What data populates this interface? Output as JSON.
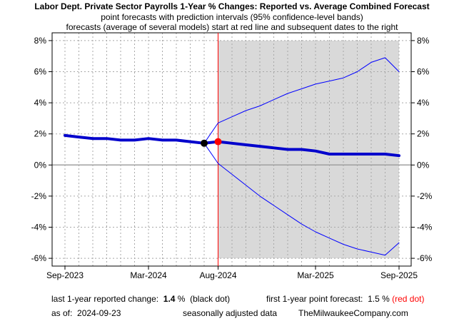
{
  "chart_data": {
    "type": "line",
    "title": "Labor Dept. Private Sector Payrolls 1-Year % Changes: Reported vs. Average Combined Forecast",
    "subtitle_1": "point forecasts with prediction intervals (95% confidence-level bands)",
    "subtitle_2": "forecasts (average of several models) start at red line and subsequent dates to the right",
    "xlabel": "",
    "ylabel": "",
    "ylim": [
      -6.5,
      8.5
    ],
    "y_ticks": [
      8,
      6,
      4,
      2,
      0,
      -2,
      -4,
      -6
    ],
    "y_tick_labels": [
      "8%",
      "6%",
      "4%",
      "2%",
      "0%",
      "-2%",
      "-4%",
      "-6%"
    ],
    "x_range": [
      "2023-09",
      "2025-09"
    ],
    "x_tick_labels": [
      "Sep-2023",
      "Mar-2024",
      "Aug-2024",
      "Mar-2025",
      "Sep-2025"
    ],
    "x_tick_dates": [
      "2023-09",
      "2024-03",
      "2024-08",
      "2025-03",
      "2025-09"
    ],
    "grid": true,
    "forecast_start": "2024-08",
    "series": [
      {
        "role": "reported",
        "color": "#0000cc",
        "x": [
          "2023-09",
          "2023-10",
          "2023-11",
          "2023-12",
          "2024-01",
          "2024-02",
          "2024-03",
          "2024-04",
          "2024-05",
          "2024-06",
          "2024-07"
        ],
        "values": [
          1.9,
          1.8,
          1.7,
          1.7,
          1.6,
          1.6,
          1.7,
          1.6,
          1.6,
          1.5,
          1.4
        ]
      },
      {
        "role": "forecast",
        "color": "#0000cc",
        "x": [
          "2024-08",
          "2024-09",
          "2024-10",
          "2024-11",
          "2024-12",
          "2025-01",
          "2025-02",
          "2025-03",
          "2025-04",
          "2025-05",
          "2025-06",
          "2025-07",
          "2025-08",
          "2025-09"
        ],
        "values": [
          1.5,
          1.4,
          1.3,
          1.2,
          1.1,
          1.0,
          1.0,
          0.9,
          0.7,
          0.7,
          0.7,
          0.7,
          0.7,
          0.6
        ]
      },
      {
        "role": "upper-band",
        "color": "#0000ff",
        "x": [
          "2024-07",
          "2024-08",
          "2024-09",
          "2024-10",
          "2024-11",
          "2024-12",
          "2025-01",
          "2025-02",
          "2025-03",
          "2025-04",
          "2025-05",
          "2025-06",
          "2025-07",
          "2025-08",
          "2025-09"
        ],
        "values": [
          1.4,
          2.7,
          3.1,
          3.5,
          3.8,
          4.2,
          4.6,
          4.9,
          5.2,
          5.4,
          5.6,
          6.0,
          6.6,
          6.9,
          6.0
        ]
      },
      {
        "role": "lower-band",
        "color": "#0000ff",
        "x": [
          "2024-07",
          "2024-08",
          "2024-09",
          "2024-10",
          "2024-11",
          "2024-12",
          "2025-01",
          "2025-02",
          "2025-03",
          "2025-04",
          "2025-05",
          "2025-06",
          "2025-07",
          "2025-08",
          "2025-09"
        ],
        "values": [
          1.4,
          0.1,
          -0.6,
          -1.3,
          -2.0,
          -2.6,
          -3.2,
          -3.8,
          -4.3,
          -4.7,
          -5.1,
          -5.4,
          -5.6,
          -5.8,
          -5.0
        ]
      }
    ],
    "markers": [
      {
        "role": "last-reported",
        "x": "2024-07",
        "value": 1.4,
        "color": "#000000"
      },
      {
        "role": "first-forecast",
        "x": "2024-08",
        "value": 1.5,
        "color": "#ff0000"
      }
    ],
    "shaded_region": {
      "from": "2024-08",
      "to": "2025-09",
      "ymin": -6,
      "ymax": 8,
      "color": "#d9d9d9"
    },
    "zero_line_color": "#a0a0a0",
    "forecast_line_color": "#ff0000"
  },
  "footer": {
    "last_reported_label": "last 1-year reported change:",
    "last_reported_value": "1.4",
    "last_reported_unit": "%",
    "last_reported_note": "(black dot)",
    "first_forecast_label": "first 1-year point forecast:",
    "first_forecast_value": "1.5 %",
    "first_forecast_note": "(red dot)",
    "as_of_label": "as of:",
    "as_of_date": "2024-09-23",
    "seasonal_note": "seasonally adjusted data",
    "source": "TheMilwaukeeCompany.com"
  }
}
